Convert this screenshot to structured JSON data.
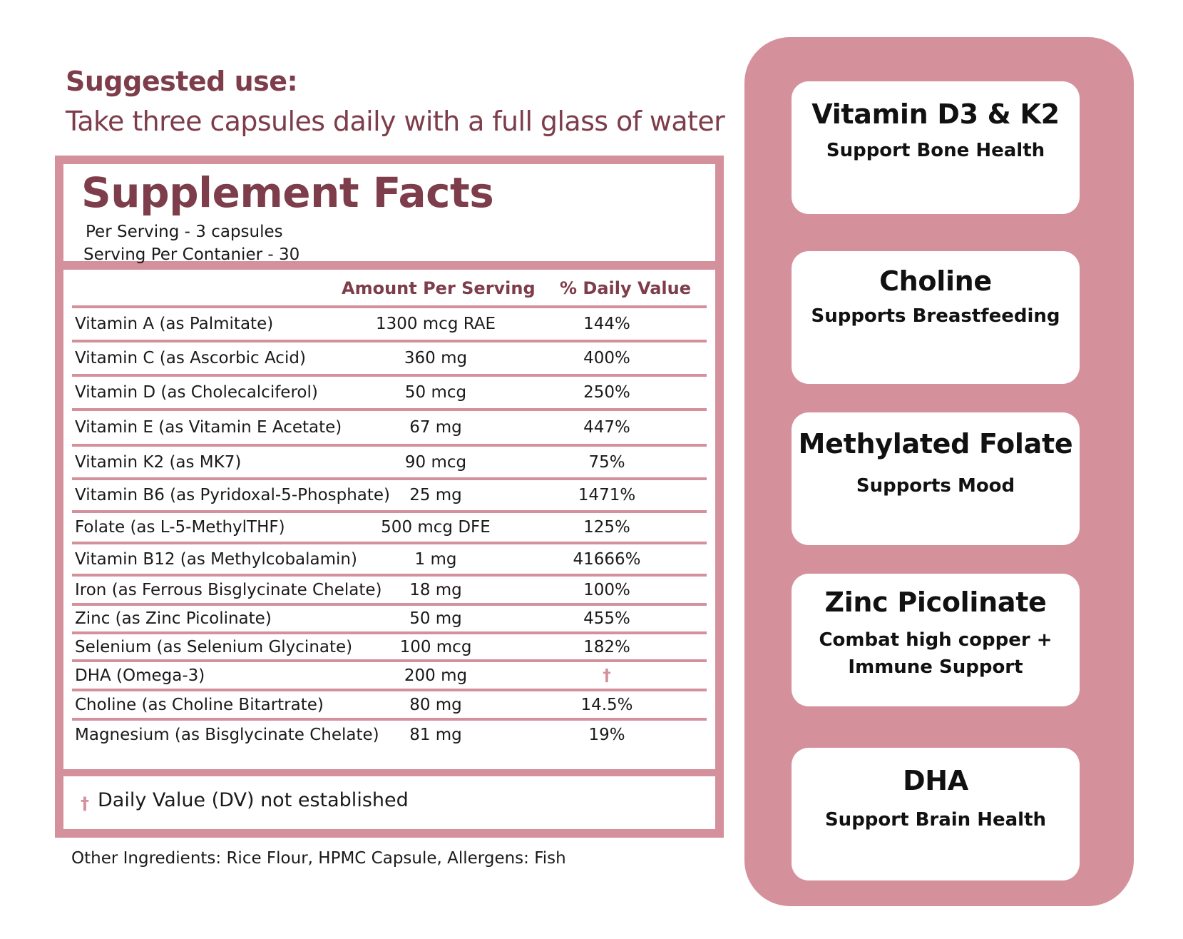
{
  "suggested_use": {
    "heading": "Suggested use:",
    "text": "Take three capsules daily with a full glass of water"
  },
  "supplement_facts": {
    "title": "Supplement Facts",
    "serving_size": "Per Serving  - 3  capsules",
    "servings_per_container": "Serving Per Contanier -  30",
    "columns": {
      "amount": "Amount Per Serving",
      "daily_value": "% Daily Value"
    },
    "rows": [
      {
        "nutrient": "Vitamin A (as Palmitate)",
        "amount": "1300 mcg RAE",
        "dv": "144%"
      },
      {
        "nutrient": "Vitamin C (as Ascorbic Acid)",
        "amount": "360 mg",
        "dv": "400%"
      },
      {
        "nutrient": "Vitamin D (as Cholecalciferol)",
        "amount": "50 mcg",
        "dv": "250%"
      },
      {
        "nutrient": "Vitamin E (as Vitamin E Acetate)",
        "amount": "67 mg",
        "dv": "447%"
      },
      {
        "nutrient": "Vitamin K2 (as MK7)",
        "amount": "90 mcg",
        "dv": "75%"
      },
      {
        "nutrient": "Vitamin B6 (as Pyridoxal-5-Phosphate)",
        "amount": "25 mg",
        "dv": "1471%"
      },
      {
        "nutrient": "Folate (as L-5-MethylTHF)",
        "amount": "500 mcg DFE",
        "dv": "125%"
      },
      {
        "nutrient": "Vitamin B12 (as Methylcobalamin)",
        "amount": "1 mg",
        "dv": "41666%"
      },
      {
        "nutrient": "Iron (as Ferrous Bisglycinate Chelate)",
        "amount": "18 mg",
        "dv": "100%"
      },
      {
        "nutrient": "Zinc (as Zinc Picolinate)",
        "amount": "50 mg",
        "dv": "455%"
      },
      {
        "nutrient": "Selenium (as Selenium Glycinate)",
        "amount": "100 mcg",
        "dv": "182%"
      },
      {
        "nutrient": "DHA (Omega-3)",
        "amount": "200 mg",
        "dv": "†"
      },
      {
        "nutrient": "Choline (as Choline Bitartrate)",
        "amount": "80 mg",
        "dv": "14.5%"
      },
      {
        "nutrient": "Magnesium (as Bisglycinate Chelate)",
        "amount": "81 mg",
        "dv": "19%"
      }
    ],
    "footnote_symbol": "†",
    "footnote": "Daily Value (DV) not established",
    "other_ingredients": "Other Ingredients: Rice Flour, HPMC Capsule, Allergens: Fish"
  },
  "benefits": [
    {
      "title": "Vitamin D3 & K2",
      "desc": "Support Bone Health"
    },
    {
      "title": "Choline",
      "desc": "Supports Breastfeeding"
    },
    {
      "title": "Methylated Folate",
      "desc": "Supports Mood"
    },
    {
      "title": "Zinc Picolinate",
      "desc": "Combat high copper + Immune Support"
    },
    {
      "title": "DHA",
      "desc": "Support Brain Health"
    }
  ],
  "colors": {
    "accent_pink": "#d4909b",
    "heading_maroon": "#7d3d4b",
    "text": "#1a1a1a",
    "background": "#ffffff"
  }
}
